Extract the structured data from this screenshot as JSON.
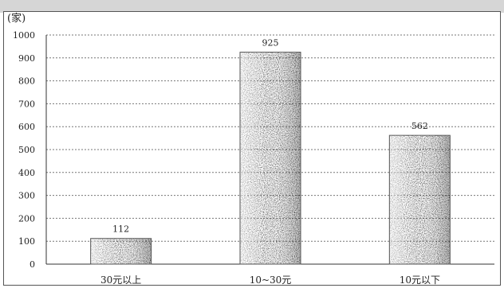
{
  "chart_data": {
    "type": "bar",
    "title": "",
    "xlabel": "",
    "ylabel": "(家)",
    "ylim": [
      0,
      1000
    ],
    "yticks": [
      "0",
      "100",
      "200",
      "300",
      "400",
      "500",
      "600",
      "700",
      "800",
      "900",
      "1000"
    ],
    "grid": true,
    "categories": [
      "30元以上",
      "10~30元",
      "10元以下"
    ],
    "values": [
      112,
      925,
      562
    ],
    "data_labels": [
      "112",
      "925",
      "562"
    ]
  }
}
